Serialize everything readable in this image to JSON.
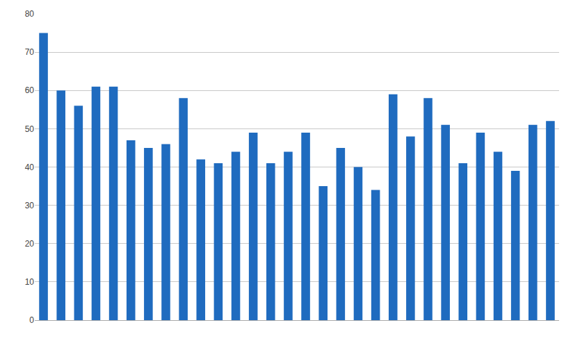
{
  "chart_data": {
    "type": "bar",
    "categories": [
      null,
      null,
      null,
      null,
      null,
      null,
      null,
      null,
      null,
      null,
      null,
      null,
      null,
      null,
      null,
      null,
      null,
      null,
      null,
      null,
      null,
      null,
      null,
      null,
      null,
      null,
      null,
      null,
      null,
      null
    ],
    "values": [
      75,
      60,
      56,
      61,
      61,
      47,
      45,
      46,
      58,
      42,
      41,
      44,
      49,
      41,
      44,
      49,
      35,
      45,
      40,
      34,
      59,
      48,
      58,
      51,
      41,
      49,
      44,
      39,
      51,
      52
    ],
    "color": "#1F6BBF",
    "ylim": [
      0,
      80
    ],
    "yticks": [
      0,
      10,
      20,
      30,
      40,
      50,
      60,
      70,
      80
    ],
    "grid": true,
    "tick_labels": "y"
  }
}
